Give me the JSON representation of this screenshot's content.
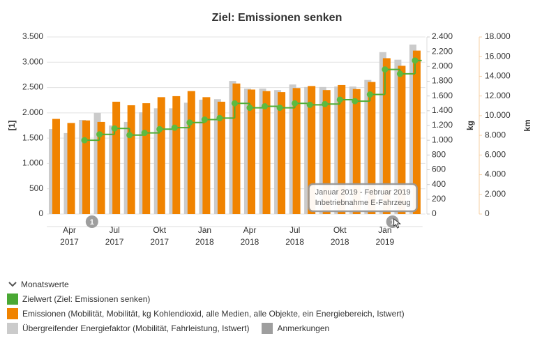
{
  "chart_data": {
    "type": "bar",
    "title": "Ziel: Emissionen senken",
    "y_label": "[1]",
    "y2_label": "kg",
    "y3_label": "km",
    "categories": [
      null,
      "Apr",
      null,
      null,
      "Jul",
      null,
      null,
      "Okt",
      null,
      null,
      "Jan",
      null,
      null,
      "Apr",
      null,
      null,
      "Jul",
      null,
      null,
      "Okt",
      null,
      null,
      "Jan",
      null,
      null
    ],
    "category_years": [
      null,
      "2017",
      null,
      null,
      "2017",
      null,
      null,
      "2017",
      null,
      null,
      "2018",
      null,
      null,
      "2018",
      null,
      null,
      "2018",
      null,
      null,
      "2018",
      null,
      null,
      "2019",
      null,
      null
    ],
    "series": [
      {
        "name": "Zielwert (Ziel: Emissionen senken)",
        "type": "line",
        "axis": "y2",
        "color": "#4fae35",
        "values": [
          null,
          null,
          1000,
          1080,
          1160,
          1070,
          1100,
          1150,
          1170,
          1240,
          1280,
          1300,
          1500,
          1440,
          1460,
          1440,
          1500,
          1480,
          1490,
          1550,
          1530,
          1620,
          1960,
          1900,
          2080
        ]
      },
      {
        "name": "Emissionen (Mobilität, Mobilität, kg Kohlendioxid, alle Medien, alle Objekte, ein Energiebereich, Istwert)",
        "type": "bar",
        "axis": "y",
        "color": "#f08300",
        "values": [
          1880,
          1800,
          1850,
          1820,
          2220,
          2150,
          2190,
          2310,
          2330,
          2430,
          2310,
          2220,
          2580,
          2460,
          2430,
          2410,
          2490,
          2530,
          2450,
          2550,
          2470,
          2610,
          3080,
          2930,
          3230
        ]
      },
      {
        "name": "Übergreifender Energiefaktor (Mobilität, Fahrleistung, Istwert)",
        "type": "bar",
        "axis": "y",
        "color": "#cbcbcb",
        "values": [
          1680,
          1600,
          1860,
          2000,
          1750,
          1820,
          2010,
          2090,
          2090,
          2200,
          2260,
          2270,
          2630,
          2480,
          2480,
          2450,
          2560,
          2510,
          2510,
          2520,
          2520,
          2650,
          3200,
          3050,
          3350
        ]
      }
    ],
    "ylim": [
      0,
      3500
    ],
    "yticks": [
      0,
      500,
      {
        "value": 1000,
        "label": "1.000"
      },
      {
        "value": 1500,
        "label": "1.500"
      },
      {
        "value": 2000,
        "label": "2.000"
      },
      {
        "value": 2500,
        "label": "2.500"
      },
      {
        "value": 3000,
        "label": "3.000"
      },
      {
        "value": 3500,
        "label": "3.500"
      }
    ],
    "y2lim": [
      0,
      2400
    ],
    "y2ticks": [
      0,
      200,
      400,
      600,
      800,
      {
        "value": 1000,
        "label": "1.000"
      },
      {
        "value": 1200,
        "label": "1.200"
      },
      {
        "value": 1400,
        "label": "1.400"
      },
      {
        "value": 1600,
        "label": "1.600"
      },
      {
        "value": 1800,
        "label": "1.800"
      },
      {
        "value": 2000,
        "label": "2.000"
      },
      {
        "value": 2200,
        "label": "2.200"
      },
      {
        "value": 2400,
        "label": "2.400"
      }
    ],
    "y3lim": [
      0,
      18000
    ],
    "y3ticks": [
      0,
      {
        "value": 2000,
        "label": "2.000"
      },
      {
        "value": 4000,
        "label": "4.000"
      },
      {
        "value": 6000,
        "label": "6.000"
      },
      {
        "value": 8000,
        "label": "8.000"
      },
      {
        "value": 10000,
        "label": "10.000"
      },
      {
        "value": 12000,
        "label": "12.000"
      },
      {
        "value": 14000,
        "label": "14.000"
      },
      {
        "value": 16000,
        "label": "16.000"
      },
      {
        "value": 18000,
        "label": "18.000"
      }
    ],
    "grid": true,
    "legend_title": "Monatswerte",
    "annotations": {
      "name": "Anmerkungen",
      "color": "#9e9e9e",
      "markers": [
        {
          "text": "1",
          "from": 2,
          "to": 3
        },
        {
          "text": "1",
          "from": 22,
          "to": 23,
          "tooltip": [
            "Januar 2019 - Februar 2019",
            "Inbetriebnahme E-Fahrzeug"
          ]
        }
      ]
    }
  }
}
